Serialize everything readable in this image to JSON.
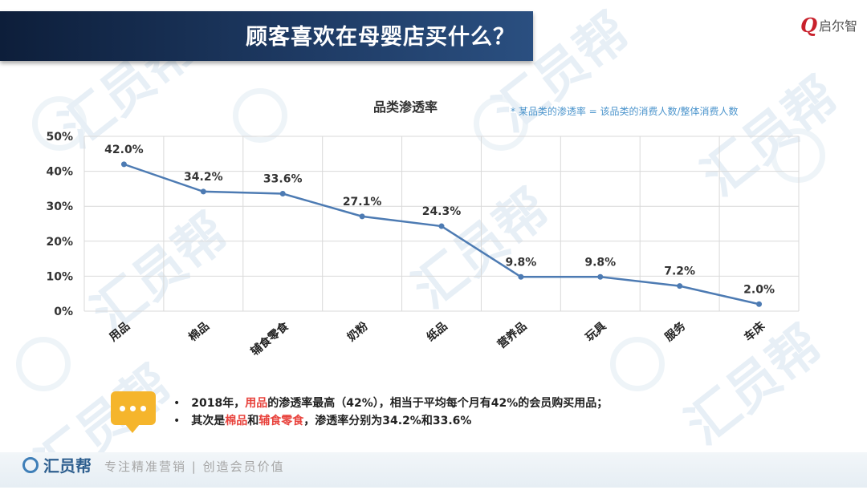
{
  "header": {
    "title": "顾客喜欢在母婴店买什么？",
    "logo_q": "Q",
    "logo_text": "启尔智"
  },
  "note": "* 某品类的渗透率 = 该品类的消费人数/整体消费人数",
  "chart_data": {
    "type": "line",
    "title": "品类渗透率",
    "categories": [
      "用品",
      "棉品",
      "辅食零食",
      "奶粉",
      "纸品",
      "营养品",
      "玩具",
      "服务",
      "车床"
    ],
    "series": [
      {
        "values": [
          42.0,
          34.2,
          33.6,
          27.1,
          24.3,
          9.8,
          9.8,
          7.2,
          2.0
        ],
        "labels": [
          "42.0%",
          "34.2%",
          "33.6%",
          "27.1%",
          "24.3%",
          "9.8%",
          "9.8%",
          "7.2%",
          "2.0%"
        ]
      }
    ],
    "yticks": [
      "0%",
      "10%",
      "20%",
      "30%",
      "40%",
      "50%"
    ],
    "ylim": [
      0,
      50
    ],
    "grid": true,
    "line_color": "#4d7bb3"
  },
  "bullets": [
    {
      "mark": "•",
      "parts": [
        {
          "text": "2018年，",
          "hl": false
        },
        {
          "text": "用品",
          "hl": true
        },
        {
          "text": "的渗透率最高（42%），相当于平均每个月有42%的会员购买用品；",
          "hl": false
        }
      ]
    },
    {
      "mark": "•",
      "parts": [
        {
          "text": "其次是",
          "hl": false
        },
        {
          "text": "棉品",
          "hl": true
        },
        {
          "text": "和",
          "hl": false
        },
        {
          "text": "辅食零食",
          "hl": true
        },
        {
          "text": "，渗透率分别为34.2%和33.6%",
          "hl": false
        }
      ]
    }
  ],
  "footer": {
    "brand": "汇员帮",
    "slogan": "专注精准营销 | 创造会员价值"
  },
  "watermark": "汇员帮"
}
